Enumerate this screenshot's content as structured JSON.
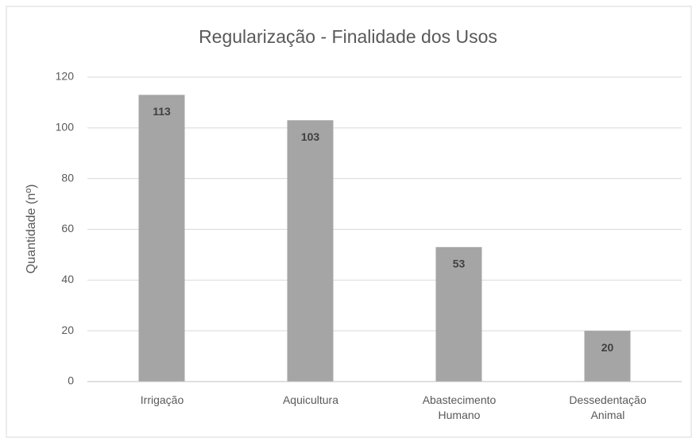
{
  "chart_data": {
    "type": "bar",
    "title": "Regularização -  Finalidade dos Usos",
    "y_label": "Quantidade (nº)",
    "categories": [
      "Irrigação",
      "Aquicultura",
      "Abastecimento Humano",
      "Dessedentação Animal"
    ],
    "values": [
      113,
      103,
      53,
      20
    ],
    "color": "#a5a5a5",
    "ylim": [
      0,
      120
    ],
    "yticks": [
      0,
      20,
      40,
      60,
      80,
      100,
      120
    ],
    "grid": true
  }
}
